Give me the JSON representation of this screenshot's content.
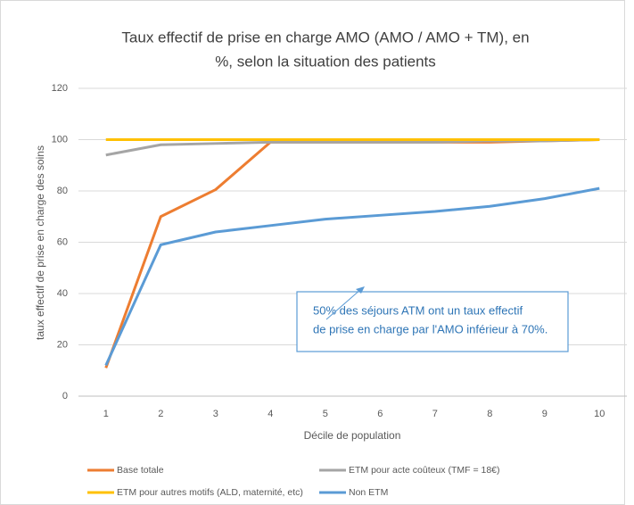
{
  "chart_data": {
    "type": "line",
    "title": [
      "Taux effectif de prise en charge AMO (AMO / AMO + TM), en",
      "%,  selon la situation des patients"
    ],
    "x_label": "Décile de population",
    "y_label": "taux effectif de prise en charge des soins",
    "categories": [
      "1",
      "2",
      "3",
      "4",
      "5",
      "6",
      "7",
      "8",
      "9",
      "10"
    ],
    "series": [
      {
        "name": "Base totale",
        "color": "#ED7D31",
        "values": [
          11,
          70,
          80.5,
          99,
          99,
          99,
          99,
          99,
          99.5,
          100
        ]
      },
      {
        "name": "ETM pour acte coûteux (TMF = 18€)",
        "color": "#A5A5A5",
        "values": [
          94,
          98,
          98.5,
          99,
          99,
          99,
          99,
          99.5,
          99.5,
          100
        ]
      },
      {
        "name": "ETM pour autres motifs (ALD, maternité, etc)",
        "color": "#FFC000",
        "values": [
          100,
          100,
          100,
          100,
          100,
          100,
          100,
          100,
          100,
          100
        ]
      },
      {
        "name": "Non ETM",
        "color": "#5B9BD5",
        "values": [
          12,
          59,
          64,
          66.5,
          69,
          70.5,
          72,
          74,
          77,
          81
        ]
      }
    ],
    "ylim": [
      0,
      120
    ],
    "yticks": [
      0,
      20,
      40,
      60,
      80,
      100,
      120
    ],
    "grid": true,
    "annotation": [
      "50% des séjours ATM ont un taux effectif",
      "de prise en charge par l'AMO inférieur à 70%."
    ]
  }
}
